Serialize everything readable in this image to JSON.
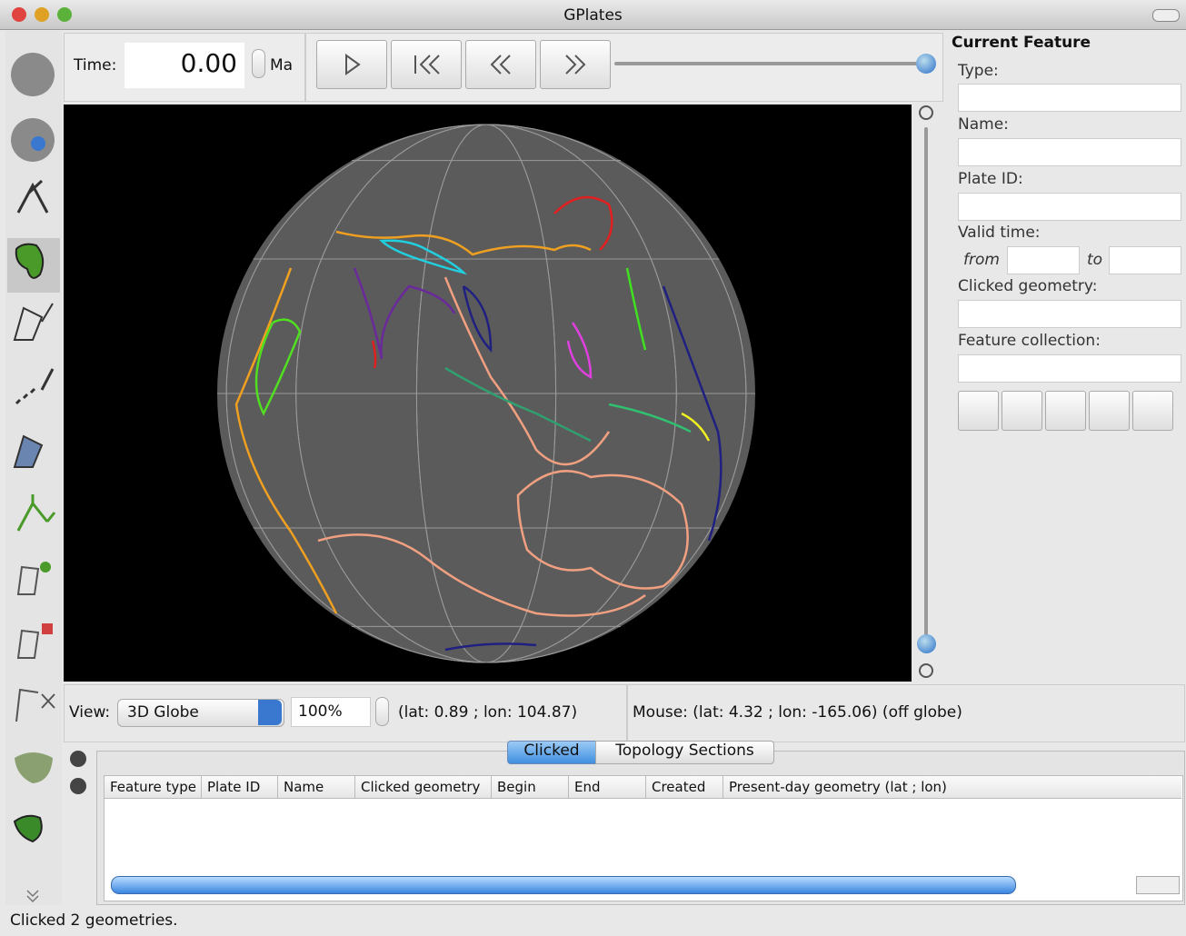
{
  "window": {
    "title": "GPlates"
  },
  "time": {
    "label": "Time:",
    "value": "0.00",
    "unit": "Ma"
  },
  "current_feature": {
    "title": "Current Feature",
    "type": "Type:",
    "name": "Name:",
    "plate_id": "Plate ID:",
    "valid_time": "Valid time:",
    "from": "from",
    "to": "to",
    "clicked_geometry": "Clicked geometry:",
    "feature_collection": "Feature collection:"
  },
  "view": {
    "label": "View:",
    "mode": "3D Globe",
    "zoom": "100%",
    "position": "(lat: 0.89 ; lon: 104.87)"
  },
  "mouse": "Mouse: (lat: 4.32 ; lon: -165.06) (off globe)",
  "tabs": [
    "Clicked",
    "Topology Sections"
  ],
  "columns": [
    "Feature type",
    "Plate ID",
    "Name",
    "Clicked geometry",
    "Begin",
    "End",
    "Created",
    "Present-day geometry (lat ; lon)"
  ],
  "status": "Clicked 2 geometries."
}
